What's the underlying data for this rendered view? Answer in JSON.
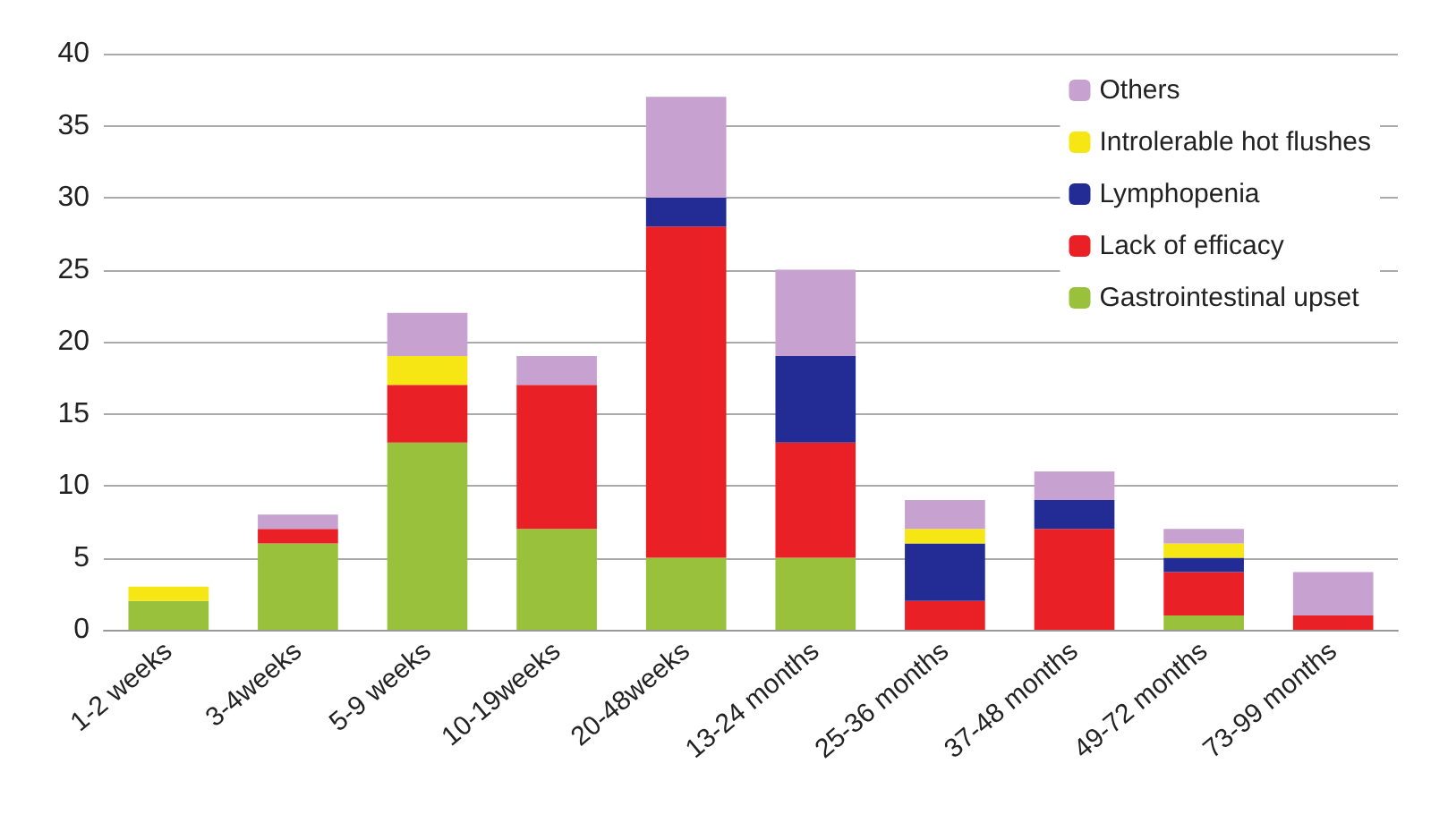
{
  "chart_data": {
    "type": "bar",
    "stacked": true,
    "categories": [
      "1-2 weeks",
      "3-4weeks",
      "5-9 weeks",
      "10-19weeks",
      "20-48weeks",
      "13-24 months",
      "25-36 months",
      "37-48 months",
      "49-72 months",
      "73-99 months"
    ],
    "series": [
      {
        "name": "Gastrointestinal upset",
        "color": "#99c13c",
        "values": [
          2,
          6,
          13,
          7,
          5,
          5,
          0,
          0,
          1,
          0
        ]
      },
      {
        "name": "Lack of efficacy",
        "color": "#ea2027",
        "values": [
          0,
          1,
          4,
          10,
          23,
          8,
          2,
          7,
          3,
          1
        ]
      },
      {
        "name": "Lymphopenia",
        "color": "#232c94",
        "values": [
          0,
          0,
          0,
          0,
          2,
          6,
          4,
          2,
          1,
          0
        ]
      },
      {
        "name": "Introlerable hot flushes",
        "color": "#f6e614",
        "values": [
          1,
          0,
          2,
          0,
          0,
          0,
          1,
          0,
          1,
          0
        ]
      },
      {
        "name": "Others",
        "color": "#c7a1d0",
        "values": [
          0,
          1,
          3,
          2,
          7,
          6,
          2,
          2,
          1,
          3
        ]
      }
    ],
    "ylim": [
      0,
      40
    ],
    "yticks": [
      0,
      5,
      10,
      15,
      20,
      25,
      30,
      35,
      40
    ],
    "grid": "y",
    "legend": "top right"
  }
}
